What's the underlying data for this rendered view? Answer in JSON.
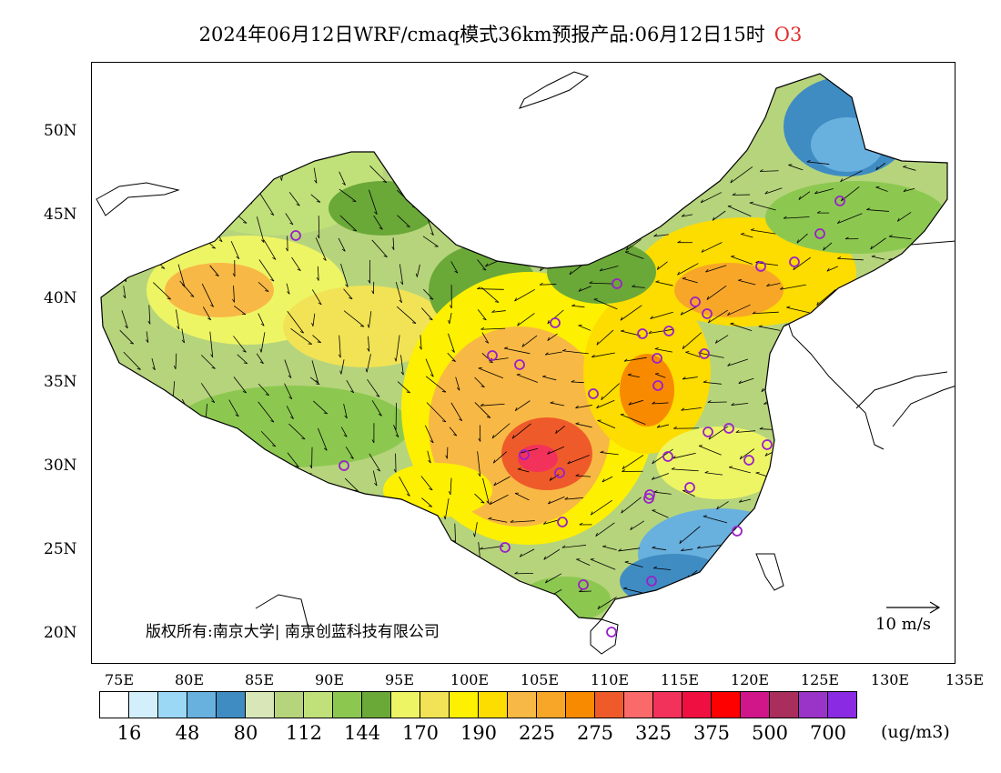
{
  "title": {
    "text": "2024年06月12日WRF/cmaq模式36km预报产品:06月12日15时",
    "pollutant": "O3"
  },
  "map": {
    "lat_labels": [
      "50N",
      "45N",
      "40N",
      "35N",
      "30N",
      "25N",
      "20N"
    ],
    "lon_labels": [
      "75E",
      "80E",
      "85E",
      "90E",
      "95E",
      "100E",
      "105E",
      "110E",
      "115E",
      "120E",
      "125E",
      "130E",
      "135E"
    ],
    "copyright": "版权所有:南京大学| 南京创蓝科技有限公司",
    "wind_reference": "10 m/s"
  },
  "colorbar": {
    "colors": [
      "#ffffff",
      "#d2effb",
      "#9ad8f5",
      "#68b0de",
      "#3f8cc3",
      "#d9e6b8",
      "#b6d47c",
      "#c0e07a",
      "#8cc850",
      "#6aa838",
      "#eef564",
      "#f1e355",
      "#fdf000",
      "#fddc00",
      "#f8b845",
      "#f8a628",
      "#f88a00",
      "#ef5a2a",
      "#fb6a6a",
      "#f2325a",
      "#ef0f40",
      "#ff0000",
      "#d1168a",
      "#a92e5c",
      "#9a34c8",
      "#8a2ae2"
    ],
    "labels": [
      "16",
      "48",
      "80",
      "112",
      "144",
      "170",
      "190",
      "225",
      "275",
      "325",
      "375",
      "500",
      "700"
    ],
    "unit": "(ug/m3)"
  }
}
